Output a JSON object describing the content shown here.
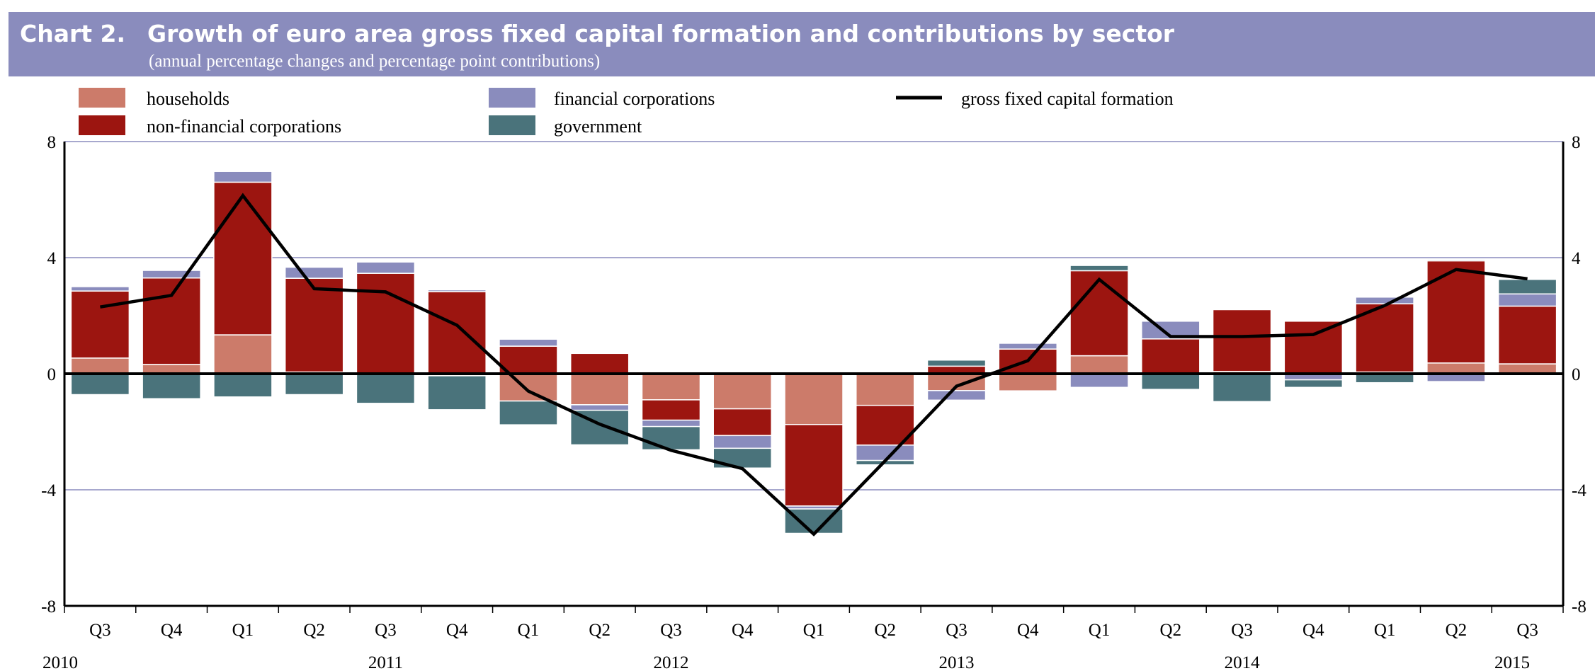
{
  "header": {
    "chart_number": "Chart 2.",
    "title": "Growth of euro area gross fixed capital formation and contributions by sector",
    "subtitle": "(annual percentage changes and percentage point contributions)",
    "background_color": "#8a8cbd"
  },
  "colors": {
    "households": "#cc7b6a",
    "non_financial_corporations": "#9c1510",
    "financial_corporations": "#8a8cbd",
    "government": "#4a737b",
    "line": "#000000",
    "gridline": "#8a8cbd"
  },
  "chart_data": {
    "type": "bar",
    "stacked": true,
    "title": "Growth of euro area gross fixed capital formation and contributions by sector",
    "subtitle": "(annual percentage changes and percentage point contributions)",
    "xlabel": "",
    "ylabel": "",
    "ylim": [
      -8,
      8
    ],
    "yticks": [
      8,
      4,
      0,
      -4,
      -8
    ],
    "ytick_labels": [
      "8",
      "4",
      "0",
      "-4",
      "-8"
    ],
    "grid": true,
    "secondary_y_axis": true,
    "legend_position": "top",
    "categories": [
      "Q3",
      "Q4",
      "Q1",
      "Q2",
      "Q3",
      "Q4",
      "Q1",
      "Q2",
      "Q3",
      "Q4",
      "Q1",
      "Q2",
      "Q3",
      "Q4",
      "Q1",
      "Q2",
      "Q3",
      "Q4",
      "Q1",
      "Q2",
      "Q3"
    ],
    "year_labels": [
      {
        "label": "2010",
        "category_index": 0
      },
      {
        "label": "2011",
        "category_index": 4
      },
      {
        "label": "2012",
        "category_index": 8
      },
      {
        "label": "2013",
        "category_index": 12
      },
      {
        "label": "2014",
        "category_index": 16
      },
      {
        "label": "2015",
        "category_index": 20
      }
    ],
    "series": [
      {
        "name": "households",
        "kind": "bar",
        "color_key": "households",
        "values": [
          0.54,
          0.32,
          1.34,
          0.06,
          0.03,
          -0.07,
          -0.94,
          -1.07,
          -0.9,
          -1.21,
          -1.75,
          -1.09,
          -0.58,
          -0.59,
          0.62,
          0.02,
          0.08,
          -0.02,
          0.06,
          0.37,
          0.34
        ]
      },
      {
        "name": "non-financial corporations",
        "kind": "bar",
        "color_key": "non_financial_corporations",
        "values": [
          2.31,
          2.98,
          5.26,
          3.23,
          3.43,
          2.83,
          0.95,
          0.7,
          -0.7,
          -0.92,
          -2.81,
          -1.37,
          0.26,
          0.85,
          2.93,
          1.18,
          2.13,
          1.81,
          2.35,
          3.52,
          1.99
        ]
      },
      {
        "name": "financial corporations",
        "kind": "bar",
        "color_key": "financial_corporations",
        "values": [
          0.15,
          0.26,
          0.37,
          0.38,
          0.39,
          0.06,
          0.24,
          -0.19,
          -0.22,
          -0.44,
          -0.1,
          -0.53,
          -0.33,
          0.2,
          -0.47,
          0.61,
          0.03,
          -0.19,
          0.23,
          -0.27,
          0.42
        ]
      },
      {
        "name": "government",
        "kind": "bar",
        "color_key": "government",
        "values": [
          -0.72,
          -0.86,
          -0.8,
          -0.72,
          -1.02,
          -1.17,
          -0.82,
          -1.19,
          -0.8,
          -0.68,
          -0.84,
          -0.15,
          0.21,
          0.0,
          0.18,
          -0.54,
          -0.96,
          -0.26,
          -0.31,
          0.04,
          0.5
        ]
      },
      {
        "name": "gross fixed capital formation",
        "kind": "line",
        "color_key": "line",
        "values": [
          2.3,
          2.7,
          6.14,
          2.93,
          2.82,
          1.67,
          -0.6,
          -1.74,
          -2.64,
          -3.27,
          -5.53,
          -3.0,
          -0.43,
          0.45,
          3.25,
          1.28,
          1.28,
          1.35,
          2.35,
          3.59,
          3.27
        ]
      }
    ]
  },
  "legend": {
    "items": [
      {
        "label": "households",
        "color_key": "households",
        "kind": "box"
      },
      {
        "label": "non-financial corporations",
        "color_key": "non_financial_corporations",
        "kind": "box"
      },
      {
        "label": "financial corporations",
        "color_key": "financial_corporations",
        "kind": "box"
      },
      {
        "label": "government",
        "color_key": "government",
        "kind": "box"
      },
      {
        "label": "gross fixed capital formation",
        "color_key": "line",
        "kind": "line"
      }
    ]
  }
}
